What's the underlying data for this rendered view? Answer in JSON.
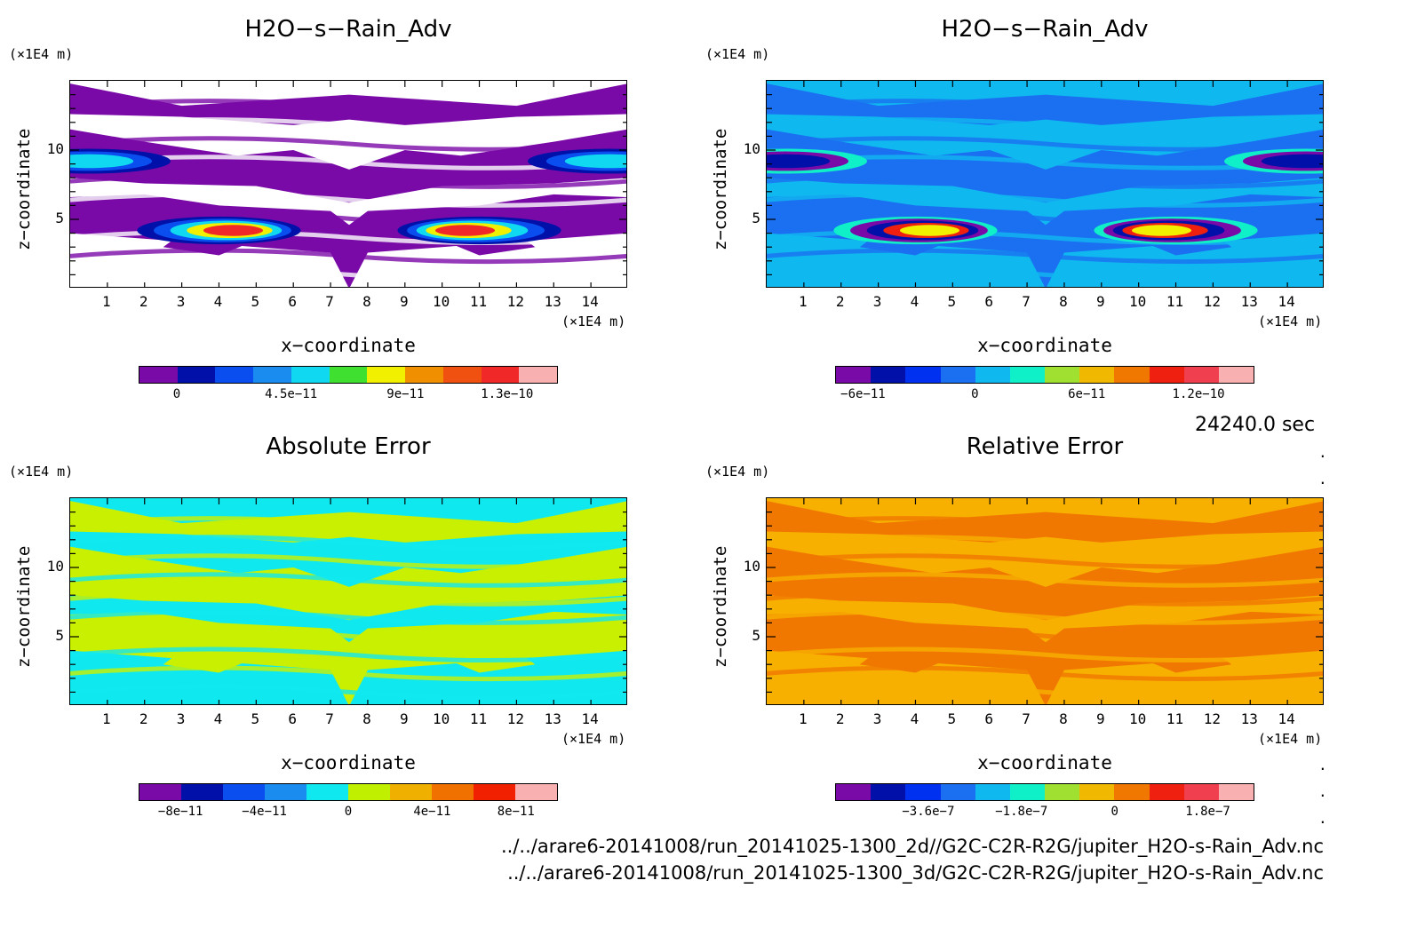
{
  "time_label": "24240.0 sec",
  "paths": [
    "../../arare6-20141008/run_20141025-1300_2d//G2C-C2R-R2G/jupiter_H2O-s-Rain_Adv.nc",
    "../../arare6-20141008/run_20141025-1300_3d/G2C-C2R-R2G/jupiter_H2O-s-Rain_Adv.nc"
  ],
  "axis_common": {
    "x_unit": "(×1E4 m)",
    "y_unit": "(×1E4 m)",
    "xlabel": "x−coordinate",
    "ylabel": "z−coordinate",
    "x_ticks": [
      "1",
      "2",
      "3",
      "4",
      "5",
      "6",
      "7",
      "8",
      "9",
      "10",
      "11",
      "12",
      "13",
      "14"
    ],
    "y_ticks": [
      "5",
      "10"
    ]
  },
  "chart_data": [
    {
      "type": "heatmap",
      "title": "H2O−s−Rain_Adv",
      "xlim": [
        0,
        15
      ],
      "ylim": [
        0,
        15
      ],
      "colorbar_ticks": [
        "0",
        "4.5e−11",
        "9e−11",
        "1.3e−10"
      ],
      "colorbar_tick_values": [
        0,
        4.5e-11,
        9e-11,
        1.3e-10
      ],
      "colorbar_range": [
        -1.5e-11,
        1.5e-10
      ],
      "colorbar_colors": [
        "#7a0aa8",
        "#0010a8",
        "#0a4ef0",
        "#1a8cf0",
        "#10d8f0",
        "#40e030",
        "#f0f000",
        "#f09000",
        "#f05010",
        "#f02828",
        "#f8b0b0"
      ],
      "background_color": "#ffffff",
      "field_color": "#7a0aa8",
      "feature_colors": [
        "#0010a8",
        "#0a4ef0",
        "#10d8f0",
        "#f0f000",
        "#f02828"
      ]
    },
    {
      "type": "heatmap",
      "title": "H2O−s−Rain_Adv",
      "xlim": [
        0,
        15
      ],
      "ylim": [
        0,
        15
      ],
      "colorbar_ticks": [
        "−6e−11",
        "0",
        "6e−11",
        "1.2e−10"
      ],
      "colorbar_tick_values": [
        -6e-11,
        0,
        6e-11,
        1.2e-10
      ],
      "colorbar_range": [
        -7.5e-11,
        1.5e-10
      ],
      "colorbar_colors": [
        "#7a0aa8",
        "#0010a8",
        "#0030f0",
        "#1a70f0",
        "#10b8f0",
        "#10f0c8",
        "#a0e030",
        "#f0b800",
        "#f07800",
        "#f02010",
        "#f04050",
        "#f8b0b0"
      ],
      "background_color": "#10b8f0",
      "field_color": "#1a70f0",
      "feature_colors": [
        "#10f0c8",
        "#7a0aa8",
        "#0010a8",
        "#f02010",
        "#f0f000"
      ]
    },
    {
      "type": "heatmap",
      "title": "Absolute Error",
      "xlim": [
        0,
        15
      ],
      "ylim": [
        0,
        15
      ],
      "colorbar_ticks": [
        "−8e−11",
        "−4e−11",
        "0",
        "4e−11",
        "8e−11"
      ],
      "colorbar_tick_values": [
        -8e-11,
        -4e-11,
        0,
        4e-11,
        8e-11
      ],
      "colorbar_range": [
        -1e-10,
        1e-10
      ],
      "colorbar_colors": [
        "#7a0aa8",
        "#0010a8",
        "#0a4ef0",
        "#1a8cf0",
        "#10e8f0",
        "#c0f000",
        "#f0b000",
        "#f07000",
        "#f02000",
        "#f8b0b0"
      ],
      "background_color": "#10e8f0",
      "field_color": "#c8f000",
      "feature_colors": []
    },
    {
      "type": "heatmap",
      "title": "Relative Error",
      "xlim": [
        0,
        15
      ],
      "ylim": [
        0,
        15
      ],
      "colorbar_ticks": [
        "−3.6e−7",
        "−1.8e−7",
        "0",
        "1.8e−7"
      ],
      "colorbar_tick_values": [
        -3.6e-07,
        -1.8e-07,
        0,
        1.8e-07
      ],
      "colorbar_range": [
        -5.4e-07,
        2.7e-07
      ],
      "colorbar_colors": [
        "#7a0aa8",
        "#0010a8",
        "#0030f0",
        "#1a70f0",
        "#10b8f0",
        "#10f0c8",
        "#a0e030",
        "#f0b800",
        "#f07800",
        "#f02010",
        "#f04050",
        "#f8b0b0"
      ],
      "background_color": "#f8b000",
      "field_color": "#f07800",
      "feature_colors": []
    }
  ]
}
